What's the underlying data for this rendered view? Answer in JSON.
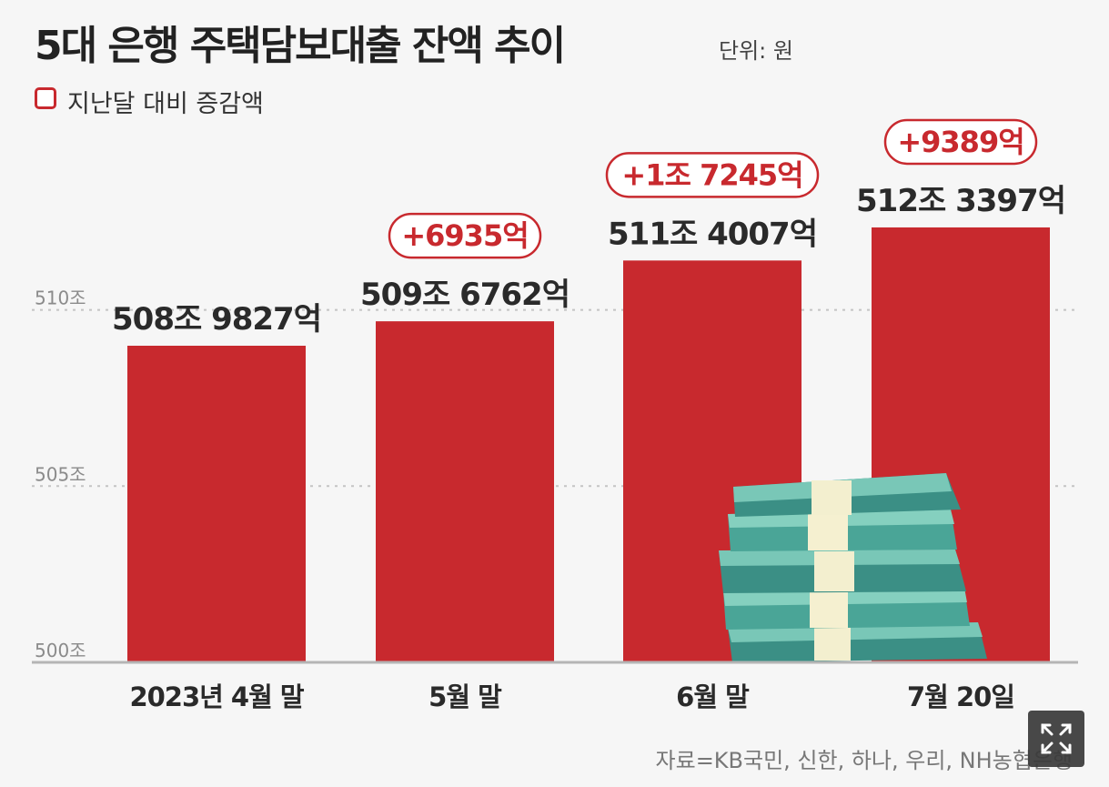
{
  "header": {
    "title": "5대 은행 주택담보대출 잔액 추이",
    "unit": "단위: 원"
  },
  "legend": {
    "label": "지난달 대비 증감액"
  },
  "source": "자료=KB국민, 신한, 하나, 우리, NH농협은행",
  "colors": {
    "bar": "#c8292e",
    "change_text": "#c8292e",
    "background": "#f6f6f6"
  },
  "chart_data": {
    "type": "bar",
    "title": "5대 은행 주택담보대출 잔액 추이",
    "categories": [
      "2023년 4월 말",
      "5월 말",
      "6월 말",
      "7월 20일"
    ],
    "values": [
      508.9827,
      509.6762,
      511.4007,
      512.3397
    ],
    "value_labels": [
      "508조 9827억",
      "509조 6762억",
      "511조 4007억",
      "512조 3397억"
    ],
    "changes": [
      "",
      "+6935억",
      "+1조 7245억",
      "+9389억"
    ],
    "ylim": [
      500,
      513.5
    ],
    "yticks": [
      500,
      505,
      510
    ],
    "ytick_labels": [
      "500조",
      "505조",
      "510조"
    ],
    "grid": true,
    "xlabel": "",
    "ylabel": ""
  }
}
